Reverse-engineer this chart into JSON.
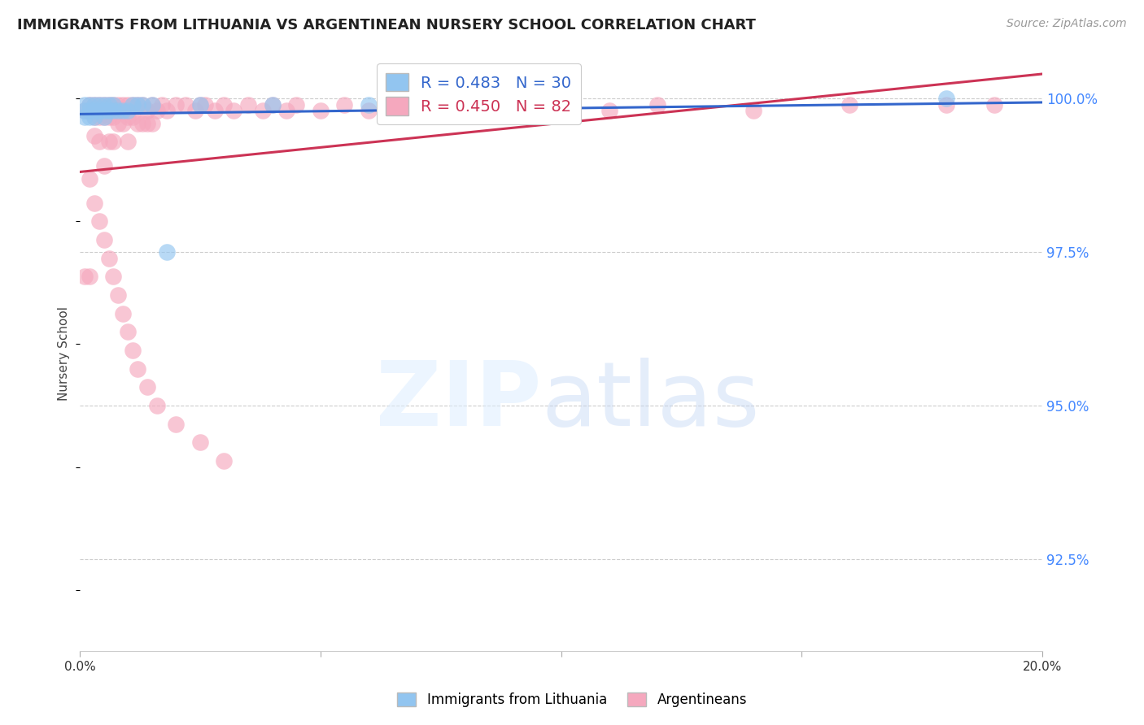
{
  "title": "IMMIGRANTS FROM LITHUANIA VS ARGENTINEAN NURSERY SCHOOL CORRELATION CHART",
  "source": "Source: ZipAtlas.com",
  "ylabel": "Nursery School",
  "ytick_labels": [
    "92.5%",
    "95.0%",
    "97.5%",
    "100.0%"
  ],
  "ytick_values": [
    0.925,
    0.95,
    0.975,
    1.0
  ],
  "xlim": [
    0.0,
    0.2
  ],
  "ylim": [
    0.91,
    1.007
  ],
  "blue_R": 0.483,
  "blue_N": 30,
  "pink_R": 0.45,
  "pink_N": 82,
  "blue_color": "#92C5F0",
  "pink_color": "#F5A8BE",
  "blue_line_color": "#3366CC",
  "pink_line_color": "#CC3355",
  "legend_label_blue": "Immigrants from Lithuania",
  "legend_label_pink": "Argentineans",
  "blue_x": [
    0.001,
    0.001,
    0.001,
    0.002,
    0.002,
    0.002,
    0.003,
    0.003,
    0.003,
    0.004,
    0.004,
    0.005,
    0.005,
    0.005,
    0.006,
    0.006,
    0.007,
    0.007,
    0.008,
    0.009,
    0.01,
    0.011,
    0.012,
    0.013,
    0.015,
    0.018,
    0.025,
    0.04,
    0.06,
    0.18
  ],
  "blue_y": [
    0.997,
    0.999,
    0.998,
    0.999,
    0.998,
    0.997,
    0.999,
    0.998,
    0.997,
    0.999,
    0.998,
    0.999,
    0.998,
    0.997,
    0.999,
    0.998,
    0.999,
    0.998,
    0.998,
    0.998,
    0.998,
    0.999,
    0.999,
    0.999,
    0.999,
    0.975,
    0.999,
    0.999,
    0.999,
    1.0
  ],
  "pink_x": [
    0.001,
    0.001,
    0.002,
    0.002,
    0.002,
    0.003,
    0.003,
    0.003,
    0.004,
    0.004,
    0.004,
    0.005,
    0.005,
    0.005,
    0.006,
    0.006,
    0.006,
    0.007,
    0.007,
    0.007,
    0.008,
    0.008,
    0.009,
    0.009,
    0.01,
    0.01,
    0.01,
    0.011,
    0.011,
    0.012,
    0.012,
    0.013,
    0.013,
    0.014,
    0.014,
    0.015,
    0.015,
    0.016,
    0.017,
    0.018,
    0.02,
    0.022,
    0.024,
    0.025,
    0.026,
    0.028,
    0.03,
    0.032,
    0.035,
    0.038,
    0.04,
    0.043,
    0.045,
    0.05,
    0.055,
    0.06,
    0.07,
    0.08,
    0.09,
    0.1,
    0.11,
    0.12,
    0.14,
    0.16,
    0.18,
    0.19,
    0.002,
    0.003,
    0.004,
    0.005,
    0.006,
    0.007,
    0.008,
    0.009,
    0.01,
    0.011,
    0.012,
    0.014,
    0.016,
    0.02,
    0.025,
    0.03
  ],
  "pink_y": [
    0.998,
    0.971,
    0.999,
    0.998,
    0.971,
    0.999,
    0.997,
    0.994,
    0.999,
    0.997,
    0.993,
    0.999,
    0.997,
    0.989,
    0.999,
    0.997,
    0.993,
    0.999,
    0.997,
    0.993,
    0.999,
    0.996,
    0.999,
    0.996,
    0.999,
    0.997,
    0.993,
    0.999,
    0.997,
    0.999,
    0.996,
    0.999,
    0.996,
    0.998,
    0.996,
    0.999,
    0.996,
    0.998,
    0.999,
    0.998,
    0.999,
    0.999,
    0.998,
    0.999,
    0.999,
    0.998,
    0.999,
    0.998,
    0.999,
    0.998,
    0.999,
    0.998,
    0.999,
    0.998,
    0.999,
    0.998,
    0.998,
    0.999,
    0.998,
    0.998,
    0.998,
    0.999,
    0.998,
    0.999,
    0.999,
    0.999,
    0.987,
    0.983,
    0.98,
    0.977,
    0.974,
    0.971,
    0.968,
    0.965,
    0.962,
    0.959,
    0.956,
    0.953,
    0.95,
    0.947,
    0.944,
    0.941
  ],
  "blue_trendline": [
    0.9965,
    0.9995
  ],
  "pink_trendline": [
    0.9865,
    0.9995
  ]
}
